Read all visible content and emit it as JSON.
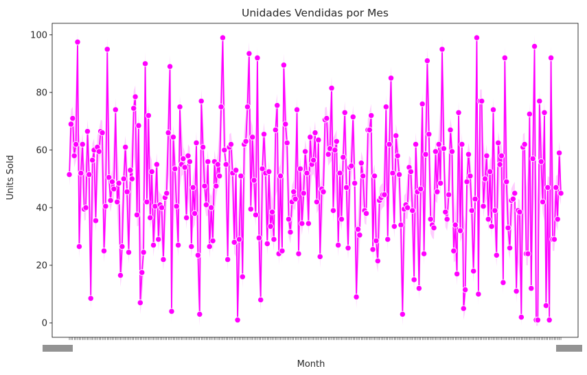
{
  "chart_data": {
    "type": "line",
    "title": "Unidades Vendidas por Mes",
    "xlabel": "Month",
    "ylabel": "Units Sold",
    "ylim": [
      -5,
      104
    ],
    "yticks": [
      0,
      20,
      40,
      60,
      80,
      100
    ],
    "grid": false,
    "legend": "none",
    "x_tick_labels_note": "dense, overlapping and unreadable",
    "series": [
      {
        "color": "#ff00ff",
        "band_color": "#ff00ff",
        "marker": "circle",
        "values": [
          51.5,
          69,
          71,
          58,
          62,
          97.5,
          26.5,
          52,
          62,
          39.5,
          40,
          66.5,
          51.5,
          8.5,
          56.5,
          60,
          35.5,
          61,
          59.5,
          66.5,
          66,
          25,
          40.5,
          95,
          50.5,
          42.5,
          49,
          46.5,
          74,
          42,
          48.5,
          16.5,
          26.5,
          50,
          61,
          45.5,
          24.5,
          53,
          50,
          74.5,
          78.5,
          37.5,
          68.5,
          7,
          17.5,
          24.5,
          90,
          42,
          72,
          36.5,
          52.5,
          27,
          40.5,
          55,
          29,
          41,
          40,
          22,
          43.5,
          45,
          66,
          89,
          4,
          64.5,
          53.5,
          40.5,
          27,
          75,
          55,
          57,
          54,
          36.5,
          58,
          56,
          26.5,
          47,
          38,
          62.5,
          23.5,
          3,
          77,
          61,
          47.5,
          41,
          56,
          26.5,
          40,
          28.5,
          56,
          47.5,
          55,
          51,
          75,
          99,
          60,
          55,
          22,
          61,
          62,
          52,
          28,
          53,
          1,
          29,
          51,
          16,
          62,
          63,
          75,
          93.5,
          39.5,
          64.5,
          49.5,
          37.5,
          92,
          29.5,
          8,
          53.5,
          65.5,
          52,
          27.5,
          52.5,
          33.5,
          38.5,
          29,
          67,
          75.5,
          24,
          51,
          25,
          89.5,
          69,
          62.5,
          36,
          31.5,
          42,
          45.5,
          43,
          74,
          24,
          53.5,
          34.5,
          45,
          59.5,
          52,
          34.5,
          64.5,
          55,
          56.5,
          66,
          42,
          63.5,
          23,
          46.5,
          45.5,
          70.5,
          71,
          58.5,
          60.5,
          81.5,
          39,
          60,
          63,
          27,
          52,
          36,
          57.5,
          73,
          47,
          26,
          54,
          54.5,
          71.5,
          48.5,
          9,
          32.5,
          30.5,
          55.5,
          51,
          39,
          38,
          67,
          67,
          72,
          25.5,
          51,
          28.5,
          21.5,
          42.5,
          43.5,
          44.5,
          44.5,
          75,
          29,
          62,
          85,
          52,
          33.5,
          65,
          58,
          51.5,
          34,
          3,
          39.5,
          41,
          40,
          54,
          52.5,
          39,
          15,
          62,
          45.5,
          12,
          46.5,
          76,
          24,
          58.5,
          91,
          65.5,
          36,
          34,
          33,
          59.5,
          45.5,
          62,
          48.5,
          95,
          60.5,
          38.5,
          36,
          44.5,
          67,
          59.5,
          25,
          34,
          17,
          73,
          32,
          62,
          5,
          11.5,
          49,
          58.5,
          51,
          39,
          18,
          43,
          99,
          10,
          77,
          77,
          40.5,
          50,
          58,
          36,
          52.5,
          33.5,
          74,
          39,
          23.5,
          62.5,
          55,
          58,
          14,
          92,
          49,
          33,
          26,
          42.5,
          43,
          45,
          11,
          39,
          38.5,
          2,
          61,
          62,
          24,
          24,
          72.5,
          12,
          57,
          96,
          1,
          1,
          77,
          56,
          42,
          73,
          6,
          47,
          1,
          92,
          29,
          29,
          47,
          36,
          59,
          45
        ]
      }
    ]
  }
}
